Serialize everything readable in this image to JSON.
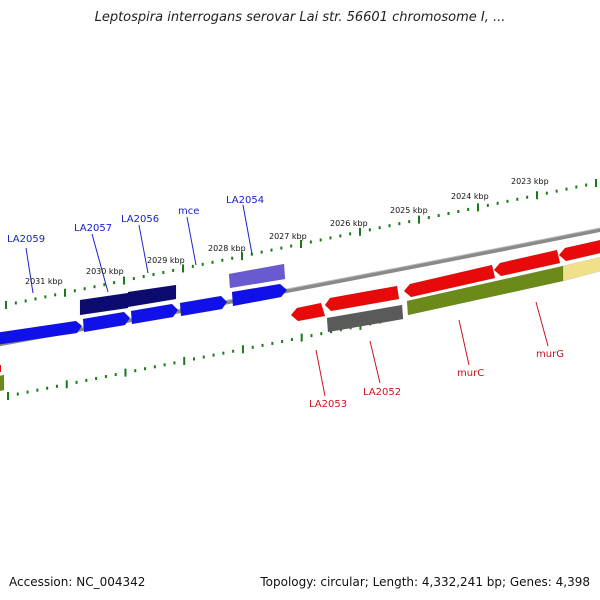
{
  "title": "Leptospira interrogans serovar Lai str. 56601 chromosome I, ...",
  "footer": {
    "accession": "Accession: NC_004342",
    "summary": "Topology: circular; Length: 4,332,241 bp; Genes: 4,398"
  },
  "colors": {
    "forward_gene": "#1010e8",
    "forward_gene_dark": "#0c0c70",
    "forward_gene_light": "#6a5ad0",
    "reverse_gene": "#e80a0a",
    "reverse_gene_grey": "#5a5a5a",
    "reverse_gene_olive": "#6b8a1a",
    "reverse_gene_yellow": "#f0e08a",
    "backbone": "#8a8a8a",
    "scale_ticks": "#1a7a1a",
    "forward_label": "#1a22c8",
    "reverse_label": "#c8141e"
  },
  "scale_labels": [
    "2031 kbp",
    "2030 kbp",
    "2029 kbp",
    "2028 kbp",
    "2027 kbp",
    "2026 kbp",
    "2025 kbp",
    "2024 kbp",
    "2023 kbp"
  ],
  "forward_genes": [
    "LA2059",
    "LA2057",
    "LA2056",
    "mce",
    "LA2054"
  ],
  "reverse_genes": [
    "LA2053",
    "LA2052",
    "murC",
    "murG"
  ]
}
